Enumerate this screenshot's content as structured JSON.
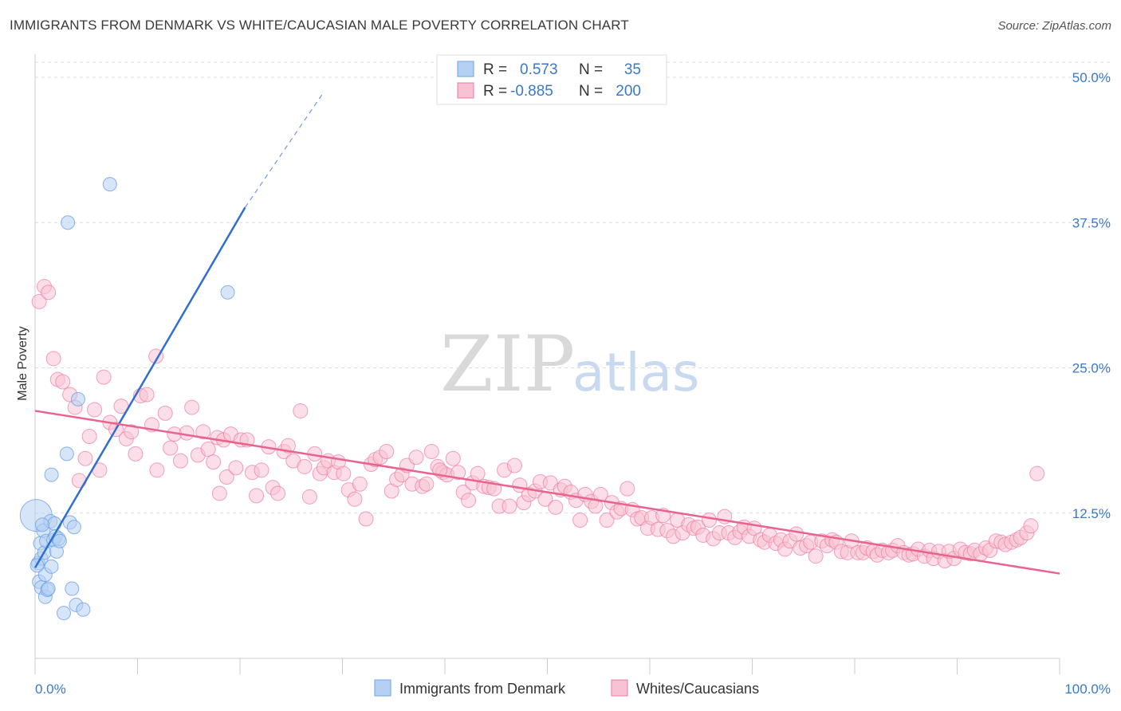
{
  "title": "IMMIGRANTS FROM DENMARK VS WHITE/CAUCASIAN MALE POVERTY CORRELATION CHART",
  "source": "Source: ZipAtlas.com",
  "watermark": {
    "zip": "ZIP",
    "atlas": "atlas"
  },
  "colors": {
    "blue": "#6fa3e6",
    "blue_fill": "#b5d0f2",
    "blue_line": "#2f6fcf",
    "pink": "#ee7aa0",
    "pink_fill": "#f7c3d4",
    "pink_line": "#e8648f",
    "tick_text": "#3b78c9"
  },
  "legend": {
    "rows": [
      {
        "r_label": "R =",
        "r_value": "0.573",
        "n_label": "N =",
        "n_value": "35"
      },
      {
        "r_label": "R =",
        "r_value": "-0.885",
        "n_label": "N =",
        "n_value": "200"
      }
    ]
  },
  "bottom_legend": {
    "series1": "Immigrants from Denmark",
    "series2": "Whites/Caucasians"
  },
  "chart_data": {
    "type": "scatter",
    "title": "IMMIGRANTS FROM DENMARK VS WHITE/CAUCASIAN MALE POVERTY CORRELATION CHART",
    "xlabel": "",
    "ylabel": "Male Poverty",
    "xlim": [
      0,
      100
    ],
    "ylim": [
      0,
      50
    ],
    "x_tick_labels": [
      "0.0%",
      "100.0%"
    ],
    "y_ticks": [
      12.5,
      25.0,
      37.5,
      50.0
    ],
    "y_tick_labels": [
      "12.5%",
      "25.0%",
      "37.5%",
      "50.0%"
    ],
    "grid": "horizontal dashed",
    "legend_position": "top-center",
    "series": [
      {
        "name": "Immigrants from Denmark",
        "r": 0.573,
        "n": 35,
        "trend": {
          "x": [
            0,
            20.5
          ],
          "y": [
            7.8,
            38.8
          ],
          "dashed_to": [
            28,
            48.5
          ]
        },
        "points": [
          [
            0.1,
            12.3
          ],
          [
            0.3,
            8.2
          ],
          [
            0.4,
            6.6
          ],
          [
            0.5,
            9.9
          ],
          [
            0.6,
            8.6
          ],
          [
            0.6,
            6.1
          ],
          [
            0.8,
            11.0
          ],
          [
            0.9,
            9.1
          ],
          [
            1.0,
            5.3
          ],
          [
            1.0,
            7.2
          ],
          [
            1.1,
            10.1
          ],
          [
            1.2,
            5.9
          ],
          [
            1.5,
            11.8
          ],
          [
            1.6,
            7.9
          ],
          [
            1.6,
            15.8
          ],
          [
            1.8,
            10.2
          ],
          [
            1.9,
            11.6
          ],
          [
            2.0,
            10.5
          ],
          [
            2.1,
            9.2
          ],
          [
            2.3,
            10.3
          ],
          [
            2.4,
            10.1
          ],
          [
            2.8,
            3.9
          ],
          [
            3.1,
            17.6
          ],
          [
            3.2,
            37.5
          ],
          [
            3.4,
            11.7
          ],
          [
            3.6,
            6.0
          ],
          [
            3.8,
            11.3
          ],
          [
            4.0,
            4.6
          ],
          [
            4.2,
            22.3
          ],
          [
            4.7,
            4.2
          ],
          [
            7.3,
            40.8
          ],
          [
            18.8,
            31.5
          ],
          [
            0.2,
            8.0
          ],
          [
            0.7,
            11.5
          ],
          [
            1.3,
            6.0
          ]
        ]
      },
      {
        "name": "Whites/Caucasians",
        "r": -0.885,
        "n": 200,
        "trend": {
          "x": [
            0,
            100
          ],
          "y": [
            21.3,
            7.3
          ]
        },
        "points": [
          [
            0.4,
            30.7
          ],
          [
            0.9,
            32.0
          ],
          [
            1.3,
            31.5
          ],
          [
            1.8,
            25.8
          ],
          [
            2.2,
            24.0
          ],
          [
            2.7,
            23.8
          ],
          [
            3.4,
            22.7
          ],
          [
            3.9,
            21.6
          ],
          [
            4.3,
            15.3
          ],
          [
            4.9,
            17.2
          ],
          [
            5.3,
            19.1
          ],
          [
            5.8,
            21.4
          ],
          [
            6.3,
            16.2
          ],
          [
            6.7,
            24.2
          ],
          [
            7.3,
            20.3
          ],
          [
            7.9,
            19.7
          ],
          [
            8.4,
            21.7
          ],
          [
            8.9,
            18.9
          ],
          [
            9.4,
            19.5
          ],
          [
            9.8,
            17.6
          ],
          [
            10.3,
            22.6
          ],
          [
            10.9,
            22.7
          ],
          [
            11.4,
            20.1
          ],
          [
            11.8,
            26.0
          ],
          [
            11.9,
            16.2
          ],
          [
            12.7,
            21.1
          ],
          [
            13.2,
            18.1
          ],
          [
            13.6,
            19.3
          ],
          [
            14.2,
            17.0
          ],
          [
            14.8,
            19.4
          ],
          [
            15.3,
            21.6
          ],
          [
            15.9,
            17.5
          ],
          [
            16.4,
            19.5
          ],
          [
            16.9,
            18.0
          ],
          [
            17.4,
            16.9
          ],
          [
            17.8,
            19.0
          ],
          [
            18.4,
            18.8
          ],
          [
            18.7,
            15.6
          ],
          [
            19.1,
            19.3
          ],
          [
            19.6,
            16.4
          ],
          [
            20.1,
            18.8
          ],
          [
            20.7,
            18.8
          ],
          [
            21.2,
            16.0
          ],
          [
            21.6,
            14.0
          ],
          [
            22.1,
            16.2
          ],
          [
            22.8,
            18.2
          ],
          [
            23.2,
            14.7
          ],
          [
            23.7,
            14.2
          ],
          [
            24.3,
            17.8
          ],
          [
            24.7,
            18.3
          ],
          [
            25.2,
            17.0
          ],
          [
            25.9,
            21.3
          ],
          [
            26.3,
            16.5
          ],
          [
            26.8,
            13.9
          ],
          [
            27.3,
            17.6
          ],
          [
            27.8,
            15.9
          ],
          [
            28.2,
            16.4
          ],
          [
            28.6,
            17.0
          ],
          [
            29.2,
            16.0
          ],
          [
            29.6,
            16.9
          ],
          [
            30.1,
            15.9
          ],
          [
            30.6,
            14.5
          ],
          [
            31.2,
            13.7
          ],
          [
            31.7,
            15.0
          ],
          [
            32.3,
            12.0
          ],
          [
            32.8,
            16.7
          ],
          [
            33.2,
            17.1
          ],
          [
            33.7,
            17.3
          ],
          [
            34.3,
            17.8
          ],
          [
            34.8,
            14.4
          ],
          [
            35.3,
            15.4
          ],
          [
            35.8,
            15.8
          ],
          [
            36.3,
            16.6
          ],
          [
            36.8,
            15.0
          ],
          [
            37.2,
            17.3
          ],
          [
            37.8,
            14.8
          ],
          [
            38.2,
            15.0
          ],
          [
            38.7,
            17.8
          ],
          [
            39.3,
            16.5
          ],
          [
            39.8,
            16.0
          ],
          [
            40.2,
            15.8
          ],
          [
            40.8,
            17.2
          ],
          [
            41.3,
            16.0
          ],
          [
            41.8,
            14.3
          ],
          [
            42.3,
            13.6
          ],
          [
            42.7,
            15.1
          ],
          [
            43.2,
            15.9
          ],
          [
            43.8,
            14.8
          ],
          [
            44.3,
            14.7
          ],
          [
            44.8,
            14.6
          ],
          [
            45.3,
            13.1
          ],
          [
            45.8,
            16.2
          ],
          [
            46.3,
            13.1
          ],
          [
            46.8,
            16.6
          ],
          [
            47.3,
            14.9
          ],
          [
            47.7,
            13.4
          ],
          [
            48.2,
            14.1
          ],
          [
            48.8,
            14.4
          ],
          [
            49.3,
            15.2
          ],
          [
            49.8,
            13.7
          ],
          [
            50.3,
            15.1
          ],
          [
            50.8,
            13.0
          ],
          [
            51.3,
            14.5
          ],
          [
            51.7,
            14.8
          ],
          [
            52.3,
            14.3
          ],
          [
            52.8,
            13.6
          ],
          [
            53.2,
            11.9
          ],
          [
            53.7,
            14.1
          ],
          [
            54.3,
            13.5
          ],
          [
            54.7,
            13.1
          ],
          [
            55.2,
            14.1
          ],
          [
            55.8,
            11.9
          ],
          [
            56.3,
            13.4
          ],
          [
            56.8,
            12.6
          ],
          [
            57.2,
            12.9
          ],
          [
            57.8,
            14.6
          ],
          [
            58.3,
            12.8
          ],
          [
            58.8,
            12.0
          ],
          [
            59.2,
            12.1
          ],
          [
            59.8,
            11.2
          ],
          [
            60.2,
            12.1
          ],
          [
            60.8,
            11.1
          ],
          [
            61.3,
            12.3
          ],
          [
            61.7,
            11.0
          ],
          [
            62.3,
            10.5
          ],
          [
            62.7,
            11.9
          ],
          [
            63.2,
            10.8
          ],
          [
            63.8,
            11.5
          ],
          [
            64.3,
            11.2
          ],
          [
            64.7,
            11.3
          ],
          [
            65.2,
            10.6
          ],
          [
            65.8,
            11.9
          ],
          [
            66.2,
            10.3
          ],
          [
            66.8,
            10.8
          ],
          [
            67.3,
            12.2
          ],
          [
            67.7,
            10.8
          ],
          [
            68.3,
            10.4
          ],
          [
            68.8,
            10.9
          ],
          [
            69.2,
            11.3
          ],
          [
            69.7,
            10.5
          ],
          [
            70.2,
            11.2
          ],
          [
            70.8,
            10.2
          ],
          [
            71.2,
            10.0
          ],
          [
            71.7,
            10.6
          ],
          [
            72.3,
            9.9
          ],
          [
            72.8,
            10.2
          ],
          [
            73.2,
            9.4
          ],
          [
            73.7,
            10.1
          ],
          [
            74.3,
            10.7
          ],
          [
            74.7,
            9.5
          ],
          [
            75.3,
            9.7
          ],
          [
            75.7,
            10.0
          ],
          [
            76.2,
            8.8
          ],
          [
            76.8,
            10.1
          ],
          [
            77.3,
            9.7
          ],
          [
            77.8,
            10.2
          ],
          [
            78.2,
            10.0
          ],
          [
            78.7,
            9.2
          ],
          [
            79.3,
            9.1
          ],
          [
            79.7,
            10.1
          ],
          [
            80.3,
            9.1
          ],
          [
            80.8,
            9.1
          ],
          [
            81.2,
            9.5
          ],
          [
            81.8,
            9.2
          ],
          [
            82.2,
            8.9
          ],
          [
            82.7,
            9.3
          ],
          [
            83.3,
            9.1
          ],
          [
            83.7,
            9.3
          ],
          [
            84.2,
            9.7
          ],
          [
            84.8,
            9.1
          ],
          [
            85.3,
            8.9
          ],
          [
            85.7,
            9.0
          ],
          [
            86.2,
            9.4
          ],
          [
            86.8,
            8.8
          ],
          [
            87.3,
            9.3
          ],
          [
            87.7,
            8.6
          ],
          [
            88.2,
            9.2
          ],
          [
            88.8,
            8.4
          ],
          [
            89.2,
            9.2
          ],
          [
            89.7,
            8.6
          ],
          [
            90.3,
            9.4
          ],
          [
            90.8,
            9.1
          ],
          [
            91.3,
            9.0
          ],
          [
            91.7,
            9.3
          ],
          [
            92.3,
            9.0
          ],
          [
            92.8,
            9.5
          ],
          [
            93.2,
            9.3
          ],
          [
            93.8,
            10.1
          ],
          [
            94.3,
            10.0
          ],
          [
            94.7,
            9.8
          ],
          [
            95.3,
            10.0
          ],
          [
            95.8,
            10.2
          ],
          [
            96.2,
            10.4
          ],
          [
            96.8,
            10.8
          ],
          [
            97.2,
            11.4
          ],
          [
            97.8,
            15.9
          ],
          [
            39.5,
            16.2
          ],
          [
            18.0,
            14.2
          ]
        ]
      }
    ]
  }
}
